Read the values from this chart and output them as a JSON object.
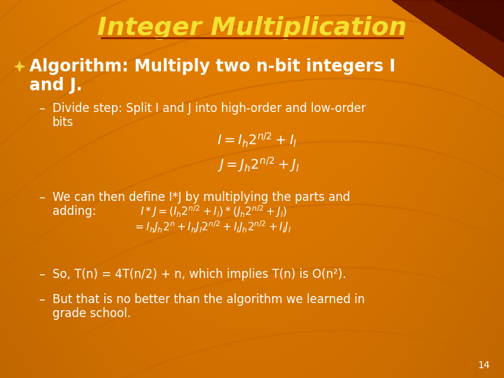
{
  "title": "Integer Multiplication",
  "title_color": "#f5e030",
  "title_underline_color": "#8b2000",
  "text_color": "#ffffff",
  "page_number": "14",
  "bg_main": "#d47000",
  "bg_dark": "#a03500",
  "swirl_color": "#c86800",
  "dark_stripe_color": "#5a0800",
  "bullet1_line1": "Algorithm: Multiply two n-bit integers I",
  "bullet1_line2": "and J.",
  "sub1_line1": "Divide step: Split I and J into high-order and low-order",
  "sub1_line2": "bits",
  "eq1": "$I = I_h 2^{n/2} + I_l$",
  "eq2": "$J = J_h 2^{n/2} + J_l$",
  "sub2_line1": "We can then define I*J by multiplying the parts and",
  "sub2_line2": "adding:",
  "eq3": "$I * J = (I_h 2^{n/2} + I_l)*(J_h 2^{n/2} + J_l)$",
  "eq4": "$= I_h J_h 2^{n} + I_h J_l 2^{n/2} + I_l J_h 2^{n/2} + I_l J_l$",
  "sub3": "So, T(n) = 4T(n/2) + n, which implies T(n) is O(n²).",
  "sub4_line1": "But that is no better than the algorithm we learned in",
  "sub4_line2": "grade school.",
  "dash": "–"
}
